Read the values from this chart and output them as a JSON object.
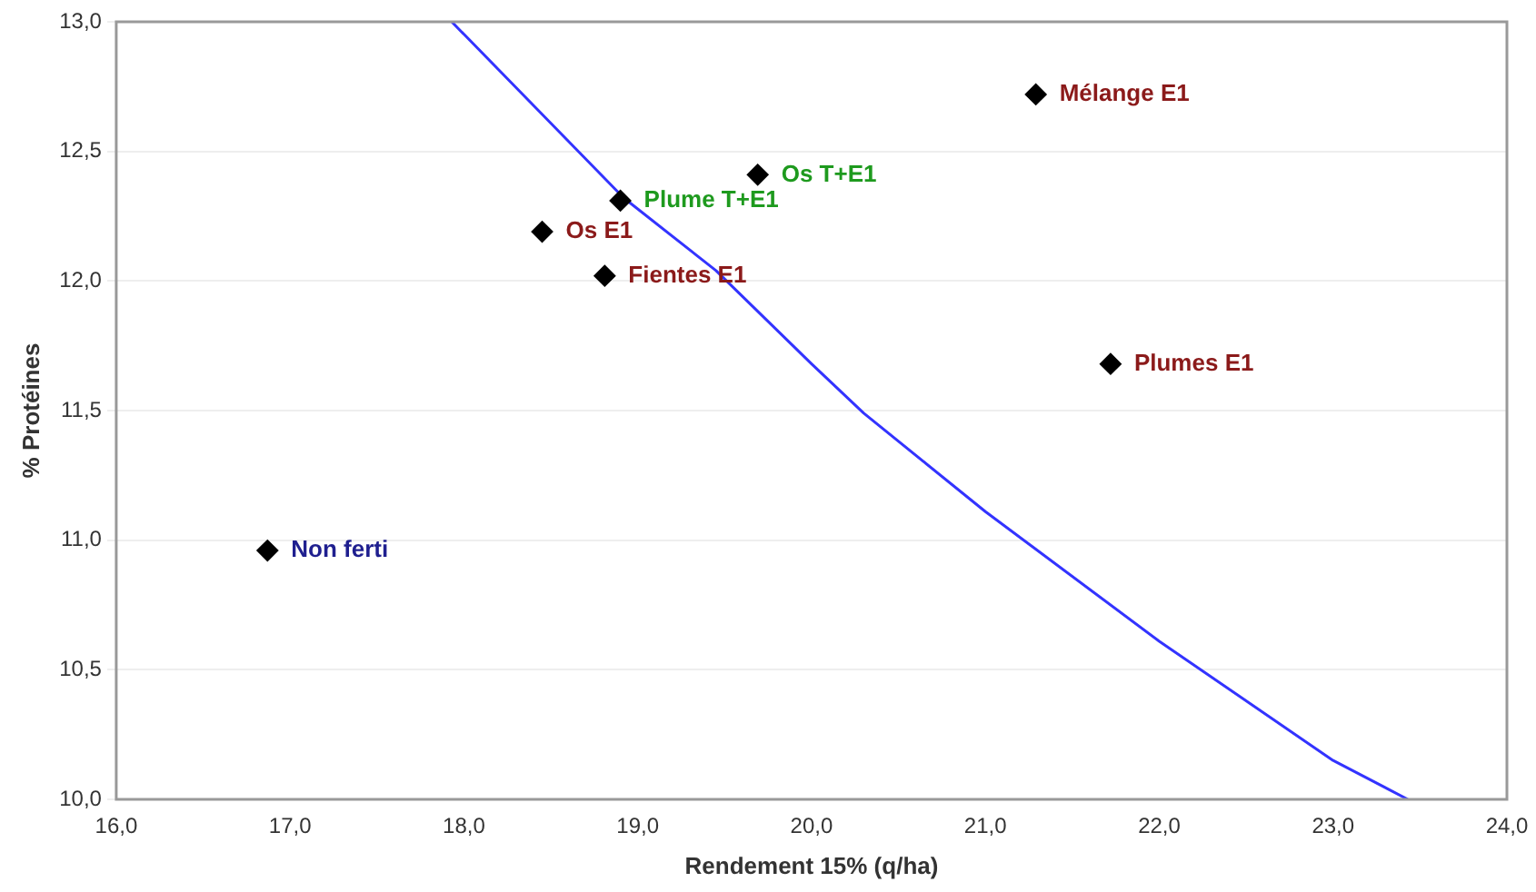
{
  "chart_data": {
    "type": "scatter",
    "xlabel": "Rendement 15% (q/ha)",
    "ylabel": "% Protéines",
    "xlim": [
      16,
      24
    ],
    "xticks": [
      {
        "value": 16,
        "label": "16,0"
      },
      {
        "value": 17,
        "label": "17,0"
      },
      {
        "value": 18,
        "label": "18,0"
      },
      {
        "value": 19,
        "label": "19,0"
      },
      {
        "value": 20,
        "label": "20,0"
      },
      {
        "value": 21,
        "label": "21,0"
      },
      {
        "value": 22,
        "label": "22,0"
      },
      {
        "value": 23,
        "label": "23,0"
      },
      {
        "value": 24,
        "label": "24,0"
      }
    ],
    "ylim": [
      10,
      13
    ],
    "yticks": [
      {
        "value": 10,
        "label": "10,0"
      },
      {
        "value": 10.5,
        "label": "10,5"
      },
      {
        "value": 11,
        "label": "11,0"
      },
      {
        "value": 11.5,
        "label": "11,5"
      },
      {
        "value": 12,
        "label": "12,0"
      },
      {
        "value": 12.5,
        "label": "12,5"
      },
      {
        "value": 13,
        "label": "13,0"
      }
    ],
    "grid": "y",
    "legend": false,
    "marker": "diamond",
    "series": [
      {
        "name": "Non ferti",
        "color": "#1f1f8f",
        "colors": [
          "#000000"
        ],
        "x": [
          16.87
        ],
        "values": [
          10.96
        ]
      },
      {
        "name": "Os E1",
        "color": "#8b1a1a",
        "colors": [
          "#000000"
        ],
        "x": [
          18.45
        ],
        "values": [
          12.19
        ]
      },
      {
        "name": "Fientes E1",
        "color": "#8b1a1a",
        "colors": [
          "#000000"
        ],
        "x": [
          18.81
        ],
        "values": [
          12.02
        ]
      },
      {
        "name": "Plume T+E1",
        "color": "#1e9a1e",
        "colors": [
          "#000000"
        ],
        "x": [
          18.9
        ],
        "values": [
          12.31
        ]
      },
      {
        "name": "Os T+E1",
        "color": "#1e9a1e",
        "colors": [
          "#000000"
        ],
        "x": [
          19.69
        ],
        "values": [
          12.41
        ]
      },
      {
        "name": "Mélange E1",
        "color": "#8b1a1a",
        "colors": [
          "#000000"
        ],
        "x": [
          21.29
        ],
        "values": [
          12.72
        ]
      },
      {
        "name": "Plumes E1",
        "color": "#8b1a1a",
        "colors": [
          "#000000"
        ],
        "x": [
          21.72
        ],
        "values": [
          11.68
        ]
      },
      {
        "type": "line",
        "color": "#3333ff",
        "marker": "none",
        "line_style": "solid",
        "x": [
          17.93,
          18.92,
          19.45,
          20.0,
          20.3,
          21.0,
          22.0,
          23.0,
          23.43
        ],
        "values": [
          13.0,
          12.32,
          12.04,
          11.68,
          11.49,
          11.11,
          10.61,
          10.15,
          10.0
        ]
      }
    ]
  }
}
